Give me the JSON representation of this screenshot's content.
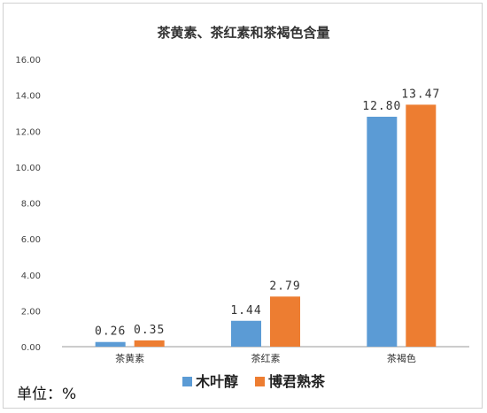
{
  "chart_data": {
    "type": "bar",
    "title": "茶黄素、茶红素和茶褐色含量",
    "categories": [
      "茶黄素",
      "茶红素",
      "茶褐色"
    ],
    "series": [
      {
        "name": "木叶醇",
        "values": [
          0.26,
          1.44,
          12.8
        ],
        "labels": [
          "0.26",
          "1.44",
          "12.80"
        ],
        "color": "#5b9bd5"
      },
      {
        "name": "博君熟茶",
        "values": [
          0.35,
          2.79,
          13.47
        ],
        "labels": [
          "0.35",
          "2.79",
          "13.47"
        ],
        "color": "#ed7d31"
      }
    ],
    "yticks": [
      "0.00",
      "2.00",
      "4.00",
      "6.00",
      "8.00",
      "10.00",
      "12.00",
      "14.00",
      "16.00"
    ],
    "ylim": [
      0,
      16
    ],
    "grid": false,
    "legend": "bottom",
    "unit_note": "单位：%"
  }
}
